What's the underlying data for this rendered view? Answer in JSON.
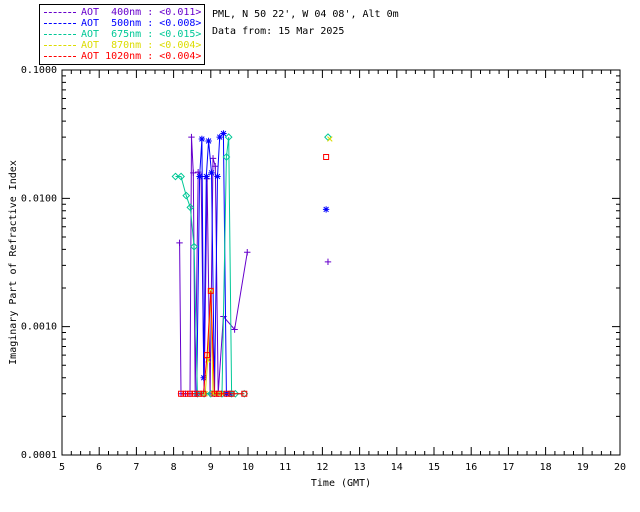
{
  "header": {
    "site_line": "PML, N 50 22', W 04 08', Alt 0m",
    "date_line": "Data from: 15 Mar 2025"
  },
  "legend": {
    "items": [
      {
        "label": "AOT  400nm : <0.011>",
        "color": "#6600CC"
      },
      {
        "label": "AOT  500nm : <0.008>",
        "color": "#0000FF"
      },
      {
        "label": "AOT  675nm : <0.015>",
        "color": "#00C896"
      },
      {
        "label": "AOT  870nm : <0.004>",
        "color": "#DCDC00"
      },
      {
        "label": "AOT 1020nm : <0.004>",
        "color": "#FF0000"
      }
    ]
  },
  "chart_data": {
    "type": "line",
    "title": "",
    "xlabel": "Time (GMT)",
    "ylabel": "Imaginary Part of Refractive Index",
    "xlim": [
      5,
      20
    ],
    "ylim": [
      0.0001,
      0.1
    ],
    "yscale": "log",
    "grid": false,
    "legend_position": "top-left-outside",
    "xticks": [
      5,
      6,
      7,
      8,
      9,
      10,
      11,
      12,
      13,
      14,
      15,
      16,
      17,
      18,
      19,
      20
    ],
    "x_minor_step": 0.25,
    "ytick_values": [
      0.1,
      0.01,
      0.001,
      0.0001
    ],
    "ytick_labels": [
      "0.1000",
      "0.0100",
      "0.0010",
      "0.0001"
    ],
    "series": [
      {
        "name": "AOT 400nm",
        "mean": "<0.011>",
        "color": "#6600CC",
        "marker": "plus",
        "line_points": [
          [
            8.16,
            0.0045
          ],
          [
            8.2,
            0.0003
          ],
          [
            8.32,
            0.0003
          ],
          [
            8.44,
            0.0003
          ],
          [
            8.48,
            0.03
          ],
          [
            8.53,
            0.0158
          ],
          [
            8.58,
            0.0003
          ],
          [
            8.66,
            0.016
          ],
          [
            8.74,
            0.0148
          ],
          [
            8.82,
            0.0003
          ],
          [
            8.9,
            0.0142
          ],
          [
            8.98,
            0.0003
          ],
          [
            9.06,
            0.0205
          ],
          [
            9.12,
            0.0178
          ],
          [
            9.2,
            0.0003
          ],
          [
            9.34,
            0.0012
          ],
          [
            9.64,
            0.00095
          ],
          [
            9.98,
            0.0038
          ]
        ],
        "extra_points": [
          [
            12.15,
            0.0032
          ]
        ]
      },
      {
        "name": "AOT 500nm",
        "mean": "<0.008>",
        "color": "#0000FF",
        "marker": "asterisk",
        "line_points": [
          [
            8.62,
            0.0003
          ],
          [
            8.7,
            0.0148
          ],
          [
            8.76,
            0.029
          ],
          [
            8.81,
            0.0004
          ],
          [
            8.88,
            0.0148
          ],
          [
            8.94,
            0.028
          ],
          [
            9.02,
            0.0158
          ],
          [
            9.1,
            0.0003
          ],
          [
            9.18,
            0.0148
          ],
          [
            9.24,
            0.03
          ],
          [
            9.34,
            0.032
          ],
          [
            9.42,
            0.0003
          ],
          [
            9.52,
            0.0003
          ]
        ],
        "extra_points": [
          [
            12.1,
            0.0082
          ]
        ]
      },
      {
        "name": "AOT 675nm",
        "mean": "<0.015>",
        "color": "#00C896",
        "marker": "diamond",
        "line_points": [
          [
            8.05,
            0.0148
          ],
          [
            8.2,
            0.0148
          ],
          [
            8.34,
            0.0105
          ],
          [
            8.45,
            0.0085
          ],
          [
            8.55,
            0.0042
          ],
          [
            8.64,
            0.0003
          ],
          [
            8.82,
            0.0003
          ],
          [
            9.0,
            0.0003
          ],
          [
            9.3,
            0.0003
          ],
          [
            9.42,
            0.021
          ],
          [
            9.48,
            0.03
          ],
          [
            9.56,
            0.0003
          ],
          [
            9.66,
            0.0003
          ],
          [
            9.9,
            0.0003
          ]
        ],
        "extra_points": [
          [
            12.15,
            0.03
          ]
        ]
      },
      {
        "name": "AOT 870nm",
        "mean": "<0.004>",
        "color": "#DCDC00",
        "marker": "x",
        "line_points": [
          [
            8.85,
            0.0003
          ],
          [
            8.92,
            0.00055
          ],
          [
            9.0,
            0.0019
          ],
          [
            9.06,
            0.0003
          ],
          [
            9.16,
            0.0003
          ],
          [
            9.3,
            0.0003
          ]
        ],
        "extra_points": [
          [
            12.2,
            0.029
          ]
        ]
      },
      {
        "name": "AOT 1020nm",
        "mean": "<0.004>",
        "color": "#FF0000",
        "marker": "square",
        "line_points": [
          [
            8.2,
            0.0003
          ],
          [
            8.32,
            0.0003
          ],
          [
            8.44,
            0.0003
          ],
          [
            8.56,
            0.0003
          ],
          [
            8.68,
            0.0003
          ],
          [
            8.8,
            0.0003
          ],
          [
            8.9,
            0.0006
          ],
          [
            9.0,
            0.0019
          ],
          [
            9.1,
            0.0003
          ],
          [
            9.22,
            0.0003
          ],
          [
            9.42,
            0.0003
          ],
          [
            9.56,
            0.0003
          ],
          [
            9.9,
            0.0003
          ]
        ],
        "extra_points": [
          [
            12.1,
            0.021
          ]
        ]
      }
    ]
  }
}
